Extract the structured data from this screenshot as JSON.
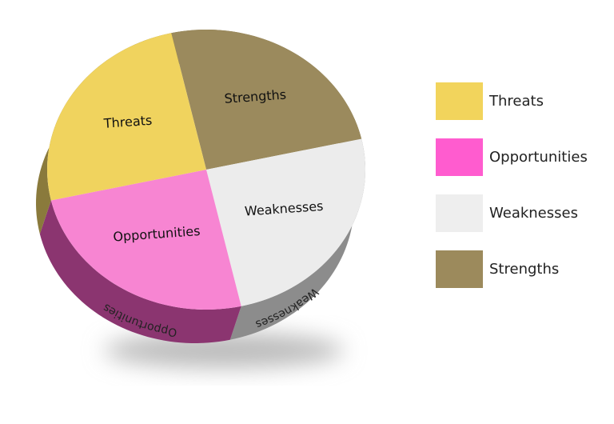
{
  "chart_data": {
    "type": "pie",
    "style": "3d",
    "title": "",
    "slices": [
      {
        "label": "Strengths",
        "value": 25,
        "color": "#9b8a5d",
        "side_color": "#7a6a3a"
      },
      {
        "label": "Weaknesses",
        "value": 25,
        "color": "#ececec",
        "side_color": "#8c8c8c"
      },
      {
        "label": "Opportunities",
        "value": 25,
        "color": "#f785d2",
        "side_color": "#8b3570"
      },
      {
        "label": "Threats",
        "value": 25,
        "color": "#f0d35e",
        "side_color": "#8a7a3c"
      }
    ],
    "legend": {
      "placement": "right",
      "items": [
        {
          "label": "Threats",
          "color": "#f2d45c"
        },
        {
          "label": "Opportunities",
          "color": "#ff5ccf"
        },
        {
          "label": "Weaknesses",
          "color": "#eeeeee"
        },
        {
          "label": "Strengths",
          "color": "#9c8a5c"
        }
      ]
    }
  }
}
